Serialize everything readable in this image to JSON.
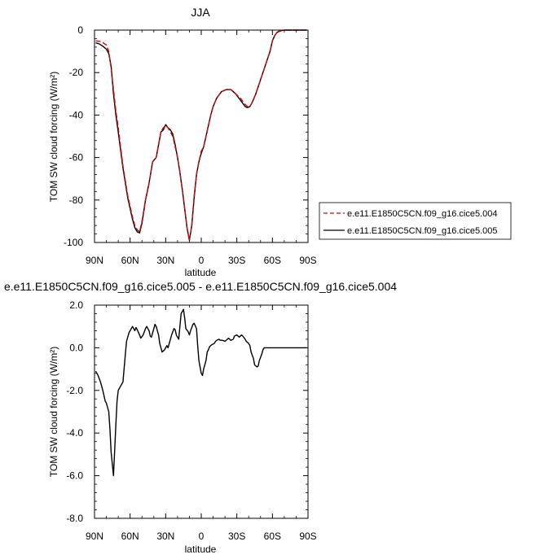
{
  "chart_data": [
    {
      "type": "line",
      "title": "JJA",
      "xlabel": "latitude",
      "ylabel": "TOM SW cloud forcing (W/m²)",
      "xlim": [
        90,
        -90
      ],
      "ylim": [
        -100,
        0
      ],
      "x_ticks": [
        90,
        60,
        30,
        0,
        -30,
        -60,
        -90
      ],
      "x_tick_labels": [
        "90N",
        "60N",
        "30N",
        "0",
        "30S",
        "60S",
        "90S"
      ],
      "y_ticks": [
        0,
        -20,
        -40,
        -60,
        -80,
        -100
      ],
      "y_tick_labels": [
        "0",
        "-20",
        "-40",
        "-60",
        "-80",
        "-100"
      ],
      "grid": false,
      "legend_position": "right",
      "series": [
        {
          "name": "e.e11.E1850C5CN.f09_g16.cice5.004",
          "color": "#e00000",
          "style": "dashed",
          "x": [
            89,
            84,
            80,
            78,
            76,
            74,
            72,
            70,
            66,
            62,
            58,
            56,
            54,
            52,
            50,
            47,
            44,
            41,
            38,
            36,
            34,
            32,
            30,
            28,
            26,
            24,
            22,
            20,
            18,
            16,
            14,
            12,
            10,
            8,
            6,
            4,
            2,
            0,
            -2,
            -4,
            -6,
            -8,
            -10,
            -13,
            -17,
            -21,
            -25,
            -29,
            -33,
            -37,
            -39,
            -41,
            -43,
            -46,
            -49,
            -52,
            -55,
            -58,
            -60,
            -62,
            -64,
            -66,
            -68,
            -70,
            -74,
            -80,
            -89
          ],
          "y": [
            -5,
            -5.5,
            -7,
            -10,
            -18,
            -28,
            -38,
            -46,
            -64,
            -78,
            -88,
            -92,
            -94,
            -95,
            -90,
            -80,
            -72,
            -62,
            -60,
            -54,
            -48,
            -46,
            -45,
            -46,
            -48,
            -50,
            -55,
            -60,
            -67,
            -75,
            -84,
            -93,
            -99,
            -92,
            -78,
            -68,
            -62,
            -57,
            -55,
            -50,
            -45,
            -40,
            -36,
            -32,
            -29,
            -28,
            -28,
            -30,
            -32,
            -35,
            -36,
            -36,
            -34,
            -30,
            -25,
            -20,
            -15,
            -10,
            -5,
            -2.5,
            -1,
            -0.5,
            -0.2,
            0,
            0,
            0,
            0
          ]
        },
        {
          "name": "e.e11.E1850C5CN.f09_g16.cice5.005",
          "color": "#000000",
          "style": "solid",
          "x": [
            89,
            86,
            84,
            82,
            80,
            78,
            76,
            74,
            72,
            70,
            66,
            62,
            58,
            56,
            54,
            52,
            50,
            47,
            44,
            41,
            38,
            36,
            34,
            32,
            30,
            28,
            26,
            24,
            22,
            20,
            18,
            16,
            14,
            12,
            10,
            8,
            6,
            4,
            2,
            0,
            -2,
            -4,
            -6,
            -8,
            -10,
            -13,
            -17,
            -21,
            -25,
            -29,
            -33,
            -37,
            -39,
            -41,
            -43,
            -46,
            -49,
            -52,
            -55,
            -58,
            -60,
            -62,
            -64,
            -66,
            -68,
            -70,
            -74,
            -80,
            -89
          ],
          "y": [
            -6,
            -6.5,
            -7.2,
            -8,
            -9,
            -11,
            -17,
            -30,
            -40,
            -48,
            -65,
            -79,
            -89,
            -93,
            -95,
            -95.5,
            -91,
            -80,
            -72,
            -62,
            -60,
            -54,
            -48,
            -47,
            -44.5,
            -46,
            -47,
            -49,
            -54,
            -60,
            -67,
            -75,
            -84,
            -93,
            -99,
            -92,
            -79,
            -68,
            -62,
            -58,
            -55,
            -50,
            -45,
            -40,
            -36,
            -32,
            -29,
            -28,
            -28,
            -30,
            -33,
            -36,
            -36.5,
            -36,
            -34,
            -30,
            -25,
            -20,
            -15,
            -10,
            -5,
            -2.5,
            -1,
            -0.5,
            -0.2,
            0,
            0,
            0,
            0
          ]
        }
      ]
    },
    {
      "type": "line",
      "title": "e.e11.E1850C5CN.f09_g16.cice5.005 - e.e11.E1850C5CN.f09_g16.cice5.004",
      "xlabel": "latitude",
      "ylabel": "TOM SW cloud forcing (W/m²)",
      "xlim": [
        90,
        -90
      ],
      "ylim": [
        -8,
        2
      ],
      "x_ticks": [
        90,
        60,
        30,
        0,
        -30,
        -60,
        -90
      ],
      "x_tick_labels": [
        "90N",
        "60N",
        "30N",
        "0",
        "30S",
        "60S",
        "90S"
      ],
      "y_ticks": [
        2,
        0,
        -2,
        -4,
        -6,
        -8
      ],
      "y_tick_labels": [
        "2.0",
        "0.0",
        "-2.0",
        "-4.0",
        "-6.0",
        "-8.0"
      ],
      "grid": false,
      "series": [
        {
          "color": "#000000",
          "style": "solid",
          "x": [
            89,
            87,
            85,
            83,
            81,
            80,
            78,
            77,
            76,
            74,
            72,
            71,
            70,
            68,
            67,
            66,
            64,
            63,
            62,
            61,
            59,
            58,
            57,
            56,
            55,
            54,
            52,
            51,
            49,
            47,
            46,
            44,
            43,
            42,
            40,
            39,
            38,
            36,
            35,
            33,
            32,
            31,
            29,
            28,
            26,
            25,
            23,
            22,
            21,
            19,
            18,
            17,
            15,
            14,
            13,
            11,
            10,
            9,
            7,
            6,
            4,
            3,
            2,
            0,
            -1,
            -2,
            -4,
            -5,
            -6,
            -7,
            -8,
            -9,
            -11,
            -12,
            -13,
            -15,
            -16,
            -18,
            -20,
            -21,
            -23,
            -24,
            -25,
            -27,
            -28,
            -30,
            -31,
            -32,
            -34,
            -35,
            -37,
            -38,
            -40,
            -41,
            -42,
            -44,
            -45,
            -47,
            -48,
            -49,
            -51,
            -52,
            -53,
            -55,
            -56,
            -57,
            -59,
            -60,
            -61,
            -63,
            -64,
            -65,
            -67,
            -68,
            -69,
            -71,
            -72,
            -73,
            -75,
            -76,
            -77,
            -79,
            -80,
            -82,
            -83,
            -84,
            -86,
            -87,
            -89
          ],
          "y": [
            -1.1,
            -1.3,
            -1.6,
            -2.0,
            -2.5,
            -2.6,
            -3.0,
            -3.8,
            -4.9,
            -6.0,
            -3.6,
            -2.5,
            -2.0,
            -1.8,
            -1.7,
            -1.6,
            -0.3,
            0.3,
            0.5,
            0.7,
            0.9,
            1.0,
            0.9,
            0.8,
            0.95,
            0.85,
            0.6,
            0.45,
            0.6,
            0.9,
            1.0,
            0.8,
            0.55,
            0.5,
            0.9,
            1.1,
            1.0,
            0.6,
            0.2,
            -0.2,
            -0.15,
            -0.1,
            0.1,
            0.0,
            0.4,
            0.6,
            0.9,
            0.85,
            0.6,
            0.4,
            1.0,
            1.6,
            1.8,
            1.4,
            0.9,
            0.75,
            0.6,
            0.8,
            1.1,
            1.15,
            0.9,
            0.1,
            -0.6,
            -1.2,
            -1.3,
            -1.0,
            -0.6,
            -0.2,
            -0.1,
            0.05,
            0.1,
            0.15,
            0.2,
            0.3,
            0.35,
            0.4,
            0.35,
            0.35,
            0.3,
            0.35,
            0.45,
            0.4,
            0.35,
            0.4,
            0.55,
            0.6,
            0.55,
            0.5,
            0.6,
            0.55,
            0.4,
            0.3,
            0.2,
            0.1,
            -0.2,
            -0.5,
            -0.8,
            -0.9,
            -0.85,
            -0.6,
            -0.3,
            -0.1,
            0.0,
            0.0,
            0.0,
            0.0,
            0.0,
            0.0,
            0.0,
            0.0,
            0.0,
            0.0,
            0.0,
            0.0,
            0.0,
            0.0,
            0.0,
            0.0,
            0.0,
            0.0,
            0.0,
            0.0,
            0.0,
            0.0,
            0.0,
            0.0,
            0.0,
            0.0,
            0.0
          ]
        }
      ]
    }
  ]
}
